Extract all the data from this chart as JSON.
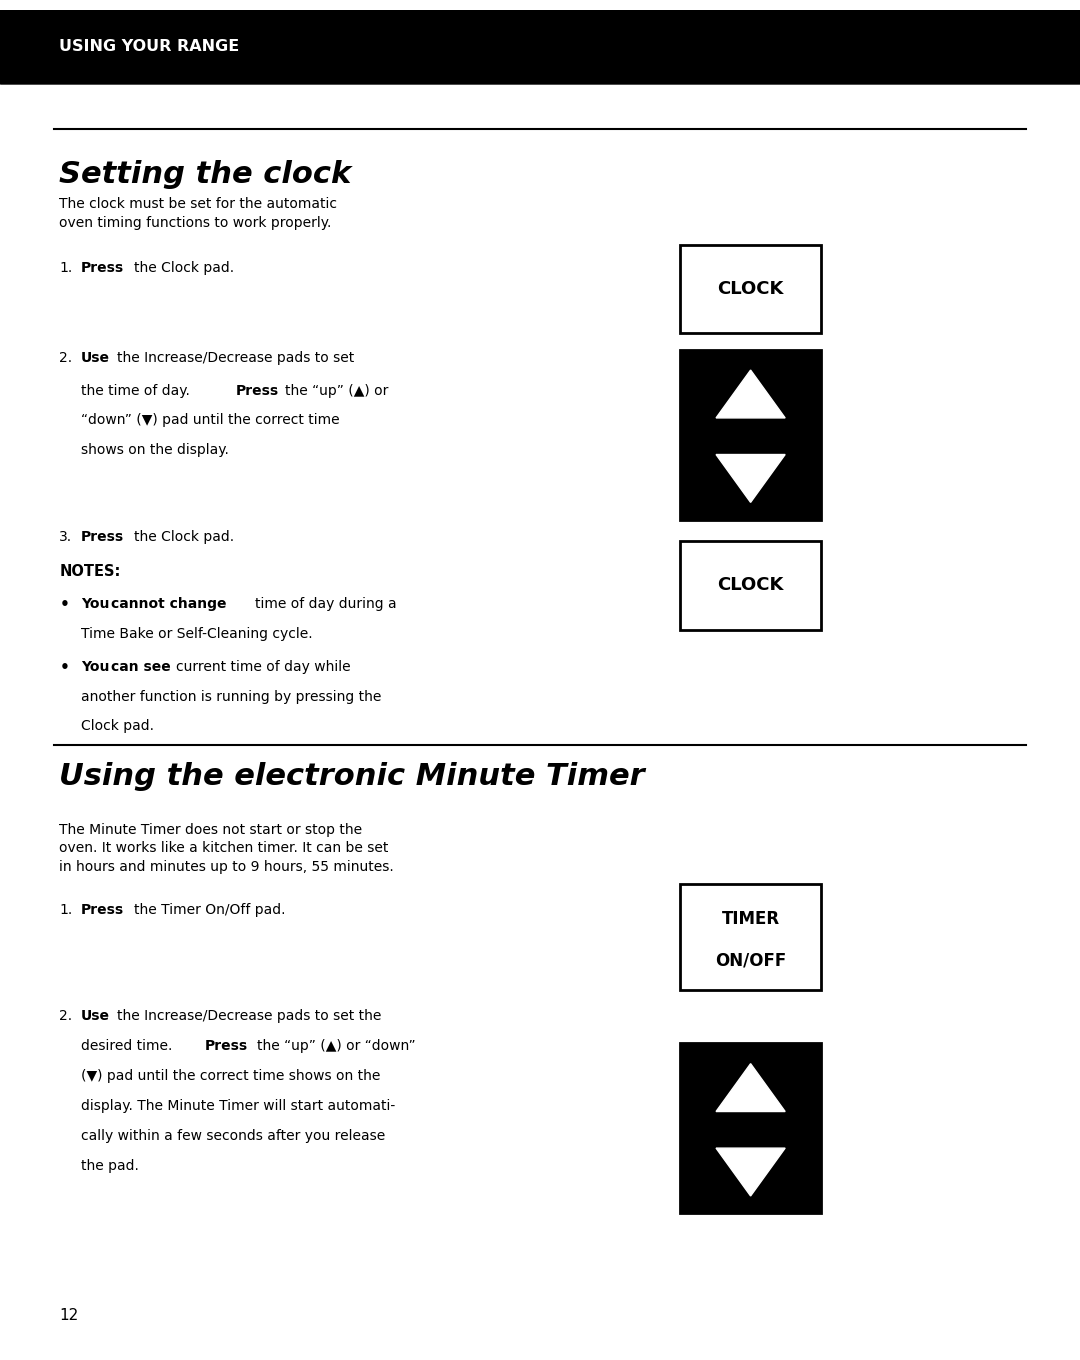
{
  "page_bg": "#ffffff",
  "header_bg": "#000000",
  "header_text": "USING YOUR RANGE",
  "header_text_color": "#ffffff",
  "section1_title": "Setting the clock",
  "section2_title": "Using the electronic Minute Timer",
  "page_number": "12"
}
